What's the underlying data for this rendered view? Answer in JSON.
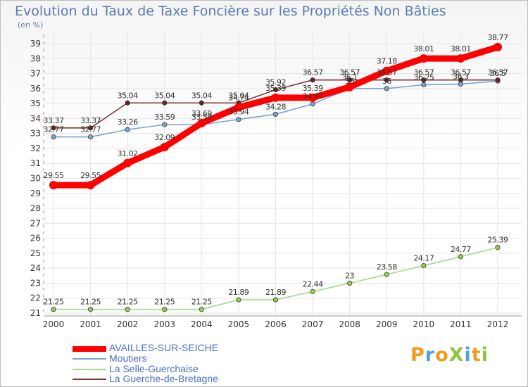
{
  "title": "Evolution du Taux de Taxe Foncière sur les Propriétés Non Bâties",
  "unit_label": "(en %)",
  "logo": {
    "text": "ProXiti",
    "letters": [
      {
        "ch": "P",
        "color": "#f39b1f"
      },
      {
        "ch": "r",
        "color": "#4aa3df"
      },
      {
        "ch": "o",
        "color": "#f39b1f"
      },
      {
        "ch": "X",
        "color": "#8cc63f"
      },
      {
        "ch": "i",
        "color": "#4aa3df"
      },
      {
        "ch": "t",
        "color": "#f39b1f"
      },
      {
        "ch": "i",
        "color": "#8cc63f"
      }
    ]
  },
  "chart_data": {
    "type": "line",
    "title": "Evolution du Taux de Taxe Foncière sur les Propriétés Non Bâties",
    "ylabel": "(en %)",
    "xlabel": "",
    "x": [
      "2000",
      "2001",
      "2002",
      "2003",
      "2004",
      "2005",
      "2006",
      "2007",
      "2008",
      "2009",
      "2010",
      "2011",
      "2012"
    ],
    "ylim": [
      21,
      39
    ],
    "yticks": [
      21,
      22,
      23,
      24,
      25,
      26,
      27,
      28,
      29,
      30,
      31,
      32,
      33,
      34,
      35,
      36,
      37,
      38,
      39
    ],
    "grid": true,
    "legend_position": "bottom-left",
    "series": [
      {
        "name": "AVAILLES-SUR-SEICHE",
        "color": "#ff0000",
        "values": [
          29.55,
          29.55,
          31.02,
          32.09,
          33.69,
          34.74,
          35.39,
          35.39,
          36.1,
          37.18,
          38.01,
          38.01,
          38.77
        ],
        "labels": [
          "29.55",
          "29.55",
          "31.02",
          "32.09",
          "33.69",
          "34.74",
          "35.39",
          "35.39",
          "36.1",
          "37.18",
          "38.01",
          "38.01",
          "38.77"
        ]
      },
      {
        "name": "Moutiers",
        "color": "#7aa5d2",
        "values": [
          32.77,
          32.77,
          33.26,
          33.59,
          33.59,
          33.94,
          34.28,
          34.97,
          36.0,
          36.0,
          36.25,
          36.3,
          36.5
        ],
        "labels": [
          "32.77",
          "32.77",
          "33.26",
          "33.59",
          "33.59",
          "33.94",
          "34.28",
          "34.97",
          "36",
          "36",
          "36.25",
          "36.3",
          "36.5"
        ]
      },
      {
        "name": "La Selle-Guerchaise",
        "color": "#a8d88a",
        "values": [
          21.25,
          21.25,
          21.25,
          21.25,
          21.25,
          21.89,
          21.89,
          22.44,
          23.0,
          23.58,
          24.17,
          24.77,
          25.39
        ],
        "labels": [
          "21.25",
          "21.25",
          "21.25",
          "21.25",
          "21.25",
          "21.89",
          "21.89",
          "22.44",
          "23",
          "23.58",
          "24.17",
          "24.77",
          "25.39"
        ]
      },
      {
        "name": "La Guerche-de-Bretagne",
        "color": "#7a3a3a",
        "values": [
          33.37,
          33.37,
          35.04,
          35.04,
          35.04,
          35.04,
          35.92,
          36.57,
          36.57,
          36.57,
          36.57,
          36.57,
          36.57
        ],
        "labels": [
          "33.37",
          "33.37",
          "35.04",
          "35.04",
          "35.04",
          "35.04",
          "35.92",
          "36.57",
          "36.57",
          "36.57",
          "36.57",
          "36.57",
          "36.57"
        ]
      }
    ]
  }
}
